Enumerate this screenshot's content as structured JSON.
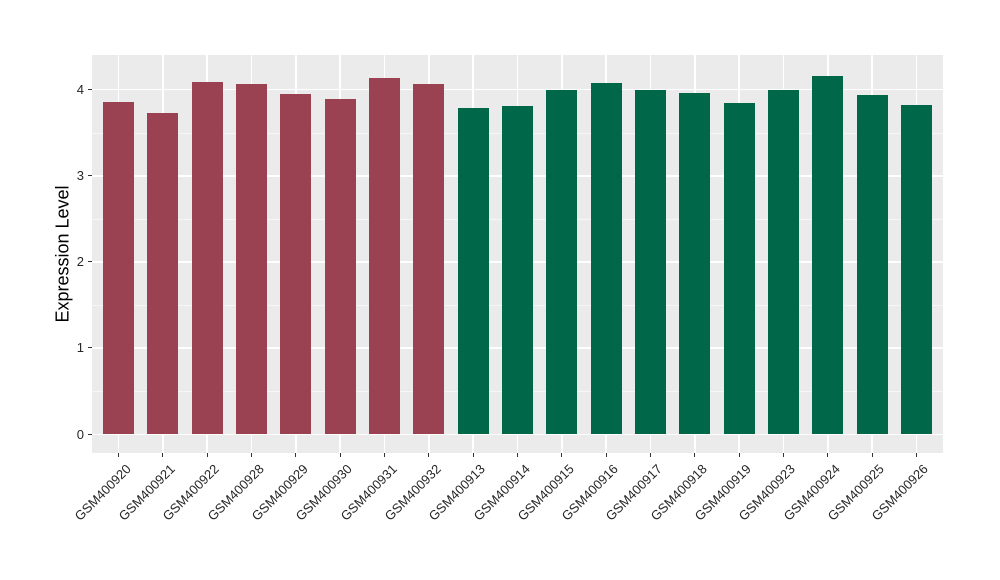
{
  "chart_data": {
    "type": "bar",
    "title": "",
    "xlabel": "",
    "ylabel": "Expression Level",
    "ylim": [
      -0.22,
      4.4
    ],
    "yticks": [
      0,
      1,
      2,
      3,
      4
    ],
    "minor_yticks": [
      0.5,
      1.5,
      2.5,
      3.5
    ],
    "grid": "on",
    "legend": "none",
    "panel_bg": "#EBEBEB",
    "grid_major_color": "#FFFFFF",
    "grid_minor_color": "#F6F6F6",
    "tick_color": "#333333",
    "axis_text_color": "#262626",
    "categories": [
      "GSM400920",
      "GSM400921",
      "GSM400922",
      "GSM400928",
      "GSM400929",
      "GSM400930",
      "GSM400931",
      "GSM400932",
      "GSM400913",
      "GSM400914",
      "GSM400915",
      "GSM400916",
      "GSM400917",
      "GSM400918",
      "GSM400919",
      "GSM400923",
      "GSM400924",
      "GSM400925",
      "GSM400926"
    ],
    "values": [
      3.86,
      3.73,
      4.09,
      4.06,
      3.95,
      3.89,
      4.13,
      4.06,
      3.78,
      3.81,
      3.99,
      4.08,
      3.99,
      3.96,
      3.84,
      3.99,
      4.16,
      3.93,
      3.82
    ],
    "groups": [
      "group1",
      "group1",
      "group1",
      "group1",
      "group1",
      "group1",
      "group1",
      "group1",
      "group2",
      "group2",
      "group2",
      "group2",
      "group2",
      "group2",
      "group2",
      "group2",
      "group2",
      "group2",
      "group2"
    ],
    "group_colors": {
      "group1": "#9A4252",
      "group2": "#006848"
    }
  }
}
